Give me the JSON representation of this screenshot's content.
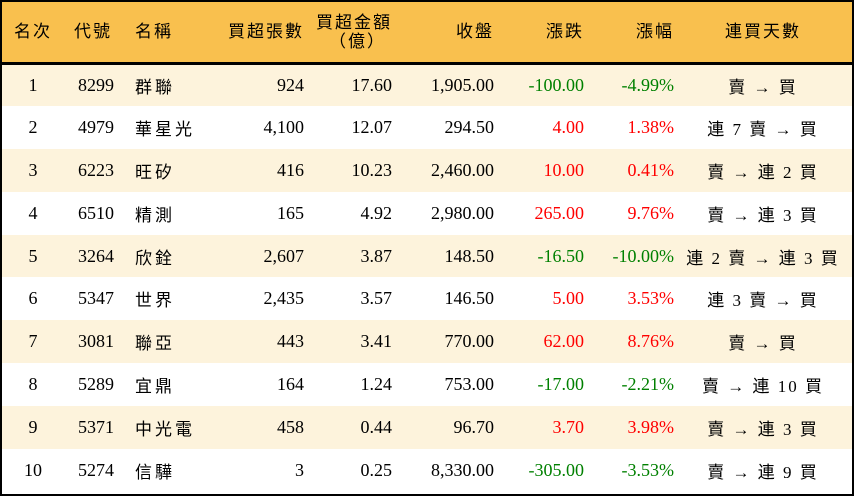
{
  "colors": {
    "header_bg": "#f9c04e",
    "row_odd_bg": "#fdf3dc",
    "row_even_bg": "#ffffff",
    "up": "#ff0000",
    "down": "#008000",
    "border": "#000000"
  },
  "table": {
    "headers": {
      "rank": "名次",
      "code": "代號",
      "name": "名稱",
      "net_buy_lots": "買超張數",
      "net_buy_amount_line1": "買超金額",
      "net_buy_amount_line2": "（億）",
      "close": "收盤",
      "change": "漲跌",
      "change_pct": "漲幅",
      "streak": "連買天數"
    },
    "rows": [
      {
        "rank": "1",
        "code": "8299",
        "name": "群聯",
        "lots": "924",
        "amount": "17.60",
        "close": "1,905.00",
        "change": "-100.00",
        "pct": "-4.99%",
        "dir": "down",
        "streak": "賣 → 買"
      },
      {
        "rank": "2",
        "code": "4979",
        "name": "華星光",
        "lots": "4,100",
        "amount": "12.07",
        "close": "294.50",
        "change": "4.00",
        "pct": "1.38%",
        "dir": "up",
        "streak": "連 7 賣 → 買"
      },
      {
        "rank": "3",
        "code": "6223",
        "name": "旺矽",
        "lots": "416",
        "amount": "10.23",
        "close": "2,460.00",
        "change": "10.00",
        "pct": "0.41%",
        "dir": "up",
        "streak": "賣 → 連 2 買"
      },
      {
        "rank": "4",
        "code": "6510",
        "name": "精測",
        "lots": "165",
        "amount": "4.92",
        "close": "2,980.00",
        "change": "265.00",
        "pct": "9.76%",
        "dir": "up",
        "streak": "賣 → 連 3 買"
      },
      {
        "rank": "5",
        "code": "3264",
        "name": "欣銓",
        "lots": "2,607",
        "amount": "3.87",
        "close": "148.50",
        "change": "-16.50",
        "pct": "-10.00%",
        "dir": "down",
        "streak": "連 2 賣 → 連 3 買"
      },
      {
        "rank": "6",
        "code": "5347",
        "name": "世界",
        "lots": "2,435",
        "amount": "3.57",
        "close": "146.50",
        "change": "5.00",
        "pct": "3.53%",
        "dir": "up",
        "streak": "連 3 賣 → 買"
      },
      {
        "rank": "7",
        "code": "3081",
        "name": "聯亞",
        "lots": "443",
        "amount": "3.41",
        "close": "770.00",
        "change": "62.00",
        "pct": "8.76%",
        "dir": "up",
        "streak": "賣 → 買"
      },
      {
        "rank": "8",
        "code": "5289",
        "name": "宜鼎",
        "lots": "164",
        "amount": "1.24",
        "close": "753.00",
        "change": "-17.00",
        "pct": "-2.21%",
        "dir": "down",
        "streak": "賣 → 連 10 買"
      },
      {
        "rank": "9",
        "code": "5371",
        "name": "中光電",
        "lots": "458",
        "amount": "0.44",
        "close": "96.70",
        "change": "3.70",
        "pct": "3.98%",
        "dir": "up",
        "streak": "賣 → 連 3 買"
      },
      {
        "rank": "10",
        "code": "5274",
        "name": "信驊",
        "lots": "3",
        "amount": "0.25",
        "close": "8,330.00",
        "change": "-305.00",
        "pct": "-3.53%",
        "dir": "down",
        "streak": "賣 → 連 9 買"
      }
    ]
  }
}
